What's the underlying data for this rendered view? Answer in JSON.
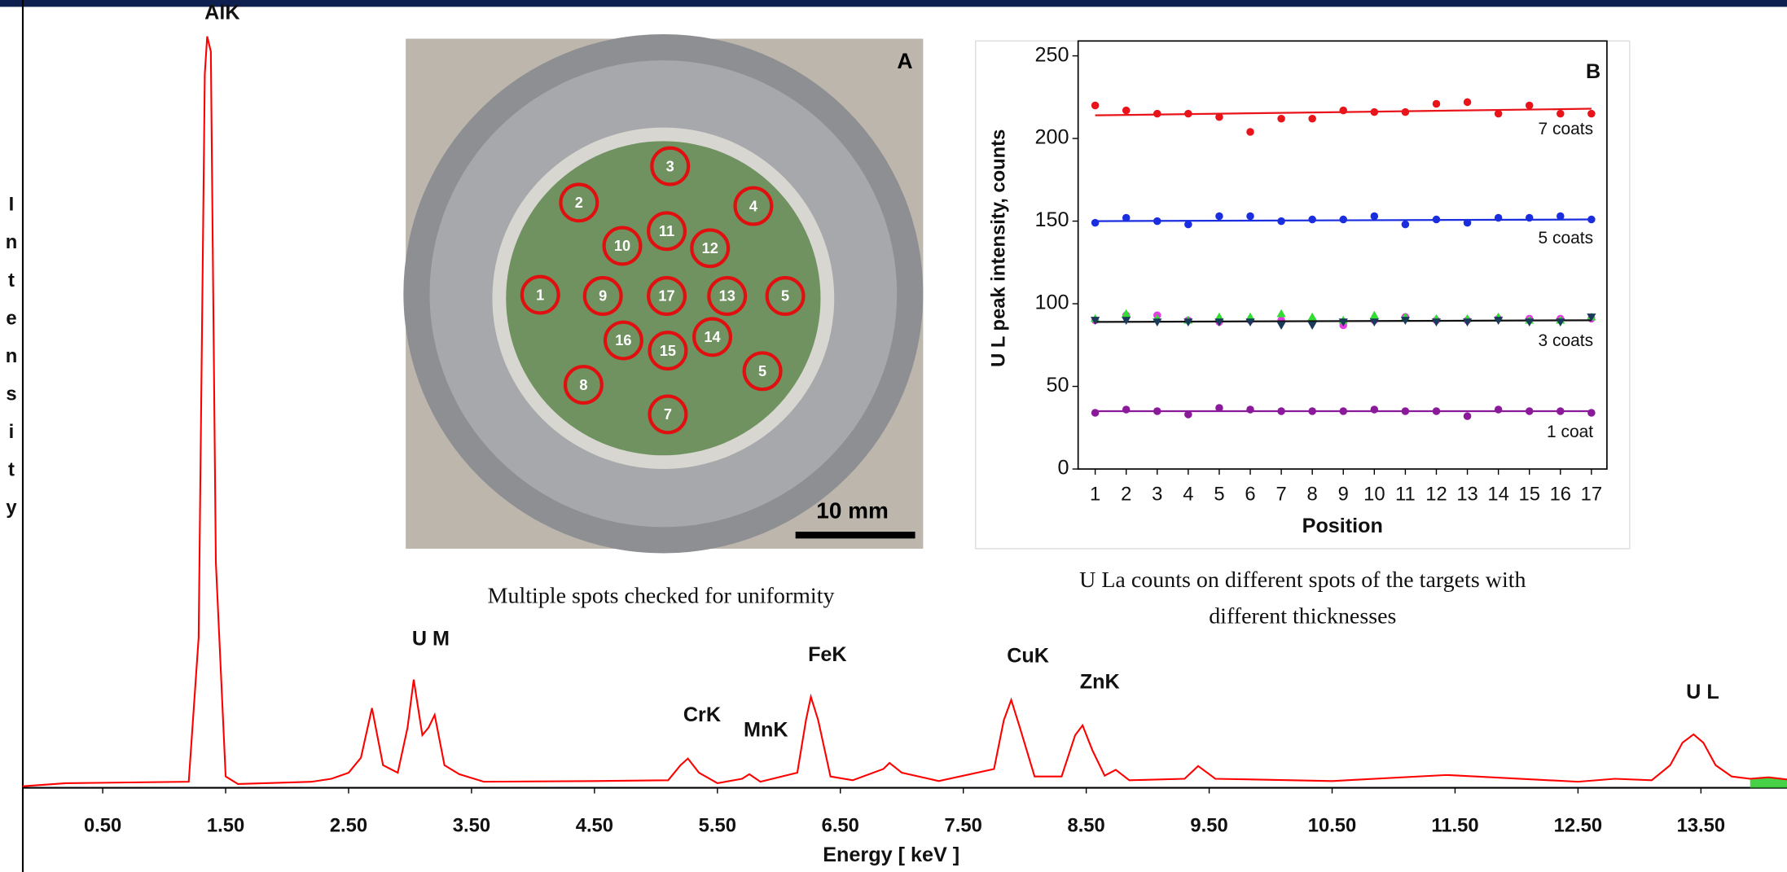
{
  "chart_data": [
    {
      "type": "line",
      "x_label": "Energy [ keV ]",
      "y_label": "Intensity",
      "color": "#ff0000",
      "x": [
        -0.15,
        0.2,
        1.2,
        1.28,
        1.33,
        1.35,
        1.38,
        1.42,
        1.5,
        1.6,
        2.2,
        2.36,
        2.5,
        2.6,
        2.69,
        2.78,
        2.9,
        2.98,
        3.03,
        3.1,
        3.15,
        3.2,
        3.28,
        3.4,
        3.6,
        4.5,
        5.1,
        5.2,
        5.26,
        5.35,
        5.5,
        5.7,
        5.76,
        5.85,
        6.15,
        6.22,
        6.26,
        6.32,
        6.42,
        6.6,
        6.85,
        6.9,
        7.0,
        7.3,
        7.75,
        7.83,
        7.89,
        7.96,
        8.08,
        8.3,
        8.41,
        8.47,
        8.55,
        8.65,
        8.74,
        8.85,
        9.3,
        9.41,
        9.55,
        10.5,
        11.43,
        12.5,
        12.8,
        13.1,
        13.25,
        13.35,
        13.44,
        13.52,
        13.62,
        13.75,
        13.9,
        14.05,
        14.2
      ],
      "values": [
        0.2,
        0.6,
        0.8,
        20,
        95,
        100,
        98,
        30,
        1.5,
        0.5,
        0.8,
        1.2,
        2,
        4,
        10.6,
        3,
        2,
        8,
        14.4,
        7,
        8,
        9.7,
        3,
        1.8,
        0.8,
        0.9,
        1,
        3,
        3.9,
        2,
        0.6,
        1.2,
        1.8,
        0.8,
        2,
        9,
        12.1,
        9,
        1.5,
        1,
        2.5,
        3.3,
        2,
        0.9,
        2.5,
        9,
        11.7,
        8,
        1.5,
        1.5,
        7,
        8.3,
        5,
        1.6,
        2.4,
        1,
        1.2,
        2.9,
        1.2,
        0.9,
        1.7,
        0.8,
        1.2,
        1,
        3,
        6,
        7.1,
        6,
        3,
        1.5,
        1.2,
        1.4,
        1.1
      ],
      "fill_color": "#33cc33",
      "xlim": [
        -0.15,
        14.2
      ],
      "ylim": [
        0,
        100
      ],
      "xticks": [
        {
          "value": 0.5,
          "label": "0.50"
        },
        {
          "value": 1.5,
          "label": "1.50"
        },
        {
          "value": 2.5,
          "label": "2.50"
        },
        {
          "value": 3.5,
          "label": "3.50"
        },
        {
          "value": 4.5,
          "label": "4.50"
        },
        {
          "value": 5.5,
          "label": "5.50"
        },
        {
          "value": 6.5,
          "label": "6.50"
        },
        {
          "value": 7.5,
          "label": "7.50"
        },
        {
          "value": 8.5,
          "label": "8.50"
        },
        {
          "value": 9.5,
          "label": "9.50"
        },
        {
          "value": 10.5,
          "label": "10.50"
        },
        {
          "value": 11.5,
          "label": "11.50"
        },
        {
          "value": 12.5,
          "label": "12.50"
        },
        {
          "value": 13.5,
          "label": "13.50"
        }
      ],
      "peak_labels": [
        "AlK",
        "U M",
        "CrK",
        "MnK",
        "FeK",
        "CuK",
        "ZnK",
        "U L"
      ]
    },
    {
      "type": "scatter",
      "panel_label": "B",
      "x_label": "Position",
      "y_label": "U L peak intensity, counts",
      "xlim": [
        0.45,
        17.5
      ],
      "ylim": [
        0,
        259
      ],
      "xticks": [
        1,
        2,
        3,
        4,
        5,
        6,
        7,
        8,
        9,
        10,
        11,
        12,
        13,
        14,
        15,
        16,
        17
      ],
      "yticks": [
        0,
        50,
        100,
        150,
        200,
        250
      ],
      "x": [
        1,
        2,
        3,
        4,
        5,
        6,
        7,
        8,
        9,
        10,
        11,
        12,
        13,
        14,
        15,
        16,
        17
      ],
      "series": [
        {
          "name": "7 coats",
          "color": "#e8141a",
          "marker": "circle",
          "values": [
            220,
            217,
            215,
            215,
            213,
            204,
            212,
            212,
            217,
            216,
            216,
            221,
            222,
            215,
            220,
            215,
            215
          ],
          "fit": [
            214,
            218
          ]
        },
        {
          "name": "5 coats",
          "color": "#1a2ee0",
          "marker": "circle",
          "values": [
            149,
            152,
            150,
            148,
            153,
            153,
            150,
            151,
            151,
            153,
            148,
            151,
            149,
            152,
            152,
            153,
            151
          ],
          "fit": [
            150,
            151
          ]
        },
        {
          "color": "#e63ce6",
          "marker": "circle",
          "values": [
            90,
            93,
            93,
            90,
            89,
            90,
            90,
            90,
            87,
            90,
            92,
            90,
            90,
            91,
            91,
            91,
            91
          ]
        },
        {
          "color": "#33dd33",
          "marker": "triangle",
          "values": [
            91,
            94,
            91,
            90,
            92,
            92,
            94,
            92,
            90,
            93,
            92,
            91,
            91,
            92,
            90,
            90,
            92
          ]
        },
        {
          "name": "3 coats",
          "color": "#1a3a5a",
          "marker": "triangle-down",
          "values": [
            90,
            90,
            89,
            89,
            89,
            89,
            87,
            87,
            89,
            89,
            90,
            89,
            89,
            90,
            89,
            89,
            92
          ],
          "fit": [
            89,
            90
          ],
          "fit_color": "#111111"
        },
        {
          "name": "1 coat",
          "color": "#8a1a9a",
          "marker": "circle",
          "values": [
            34,
            36,
            35,
            33,
            37,
            36,
            35,
            35,
            35,
            36,
            35,
            35,
            32,
            36,
            35,
            35,
            34
          ],
          "fit": [
            35,
            35
          ]
        }
      ]
    }
  ],
  "photo": {
    "panel_label": "A",
    "scale_bar": "10 mm",
    "spots": [
      "3",
      "2",
      "4",
      "11",
      "10",
      "12",
      "1",
      "9",
      "17",
      "13",
      "5",
      "14",
      "16",
      "15",
      "5",
      "8",
      "7"
    ]
  },
  "captions": {
    "left": "Multiple spots checked for uniformity",
    "right": [
      "U La counts on different spots of the targets with",
      "different thicknesses"
    ]
  }
}
